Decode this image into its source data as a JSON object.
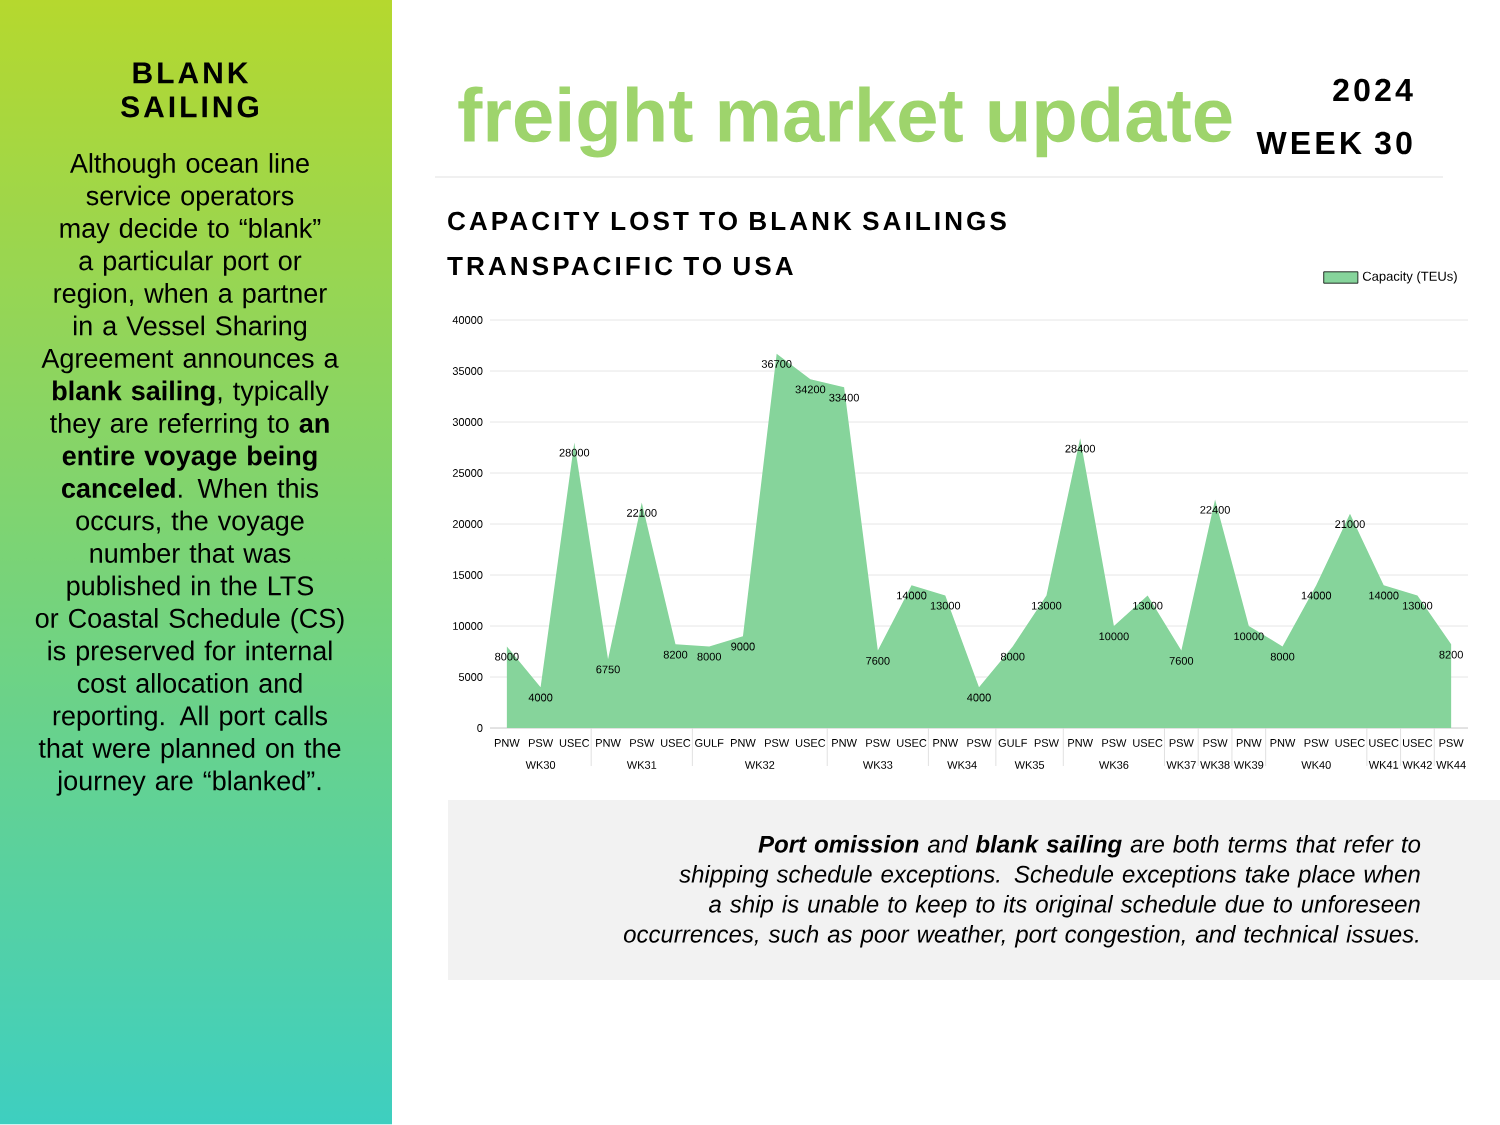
{
  "chart_data": {
    "type": "area",
    "title": "CAPACITY LOST TO BLANK SAILINGS",
    "subtitle": "TRANSPACIFIC TO USA",
    "categories": [
      "PNW",
      "PSW",
      "USEC",
      "PNW",
      "PSW",
      "USEC",
      "GULF",
      "PNW",
      "PSW",
      "USEC",
      "PNW",
      "PSW",
      "USEC",
      "PNW",
      "PSW",
      "GULF",
      "PSW",
      "PNW",
      "PSW",
      "USEC",
      "PSW",
      "PSW",
      "PNW",
      "PNW",
      "PSW",
      "USEC",
      "USEC",
      "USEC",
      "PSW"
    ],
    "series": [
      {
        "name": "Capacity (TEUs)",
        "color": "#86d49b",
        "values": [
          8000,
          4000,
          28000,
          6750,
          22100,
          8200,
          8000,
          9000,
          36700,
          34200,
          33400,
          7600,
          14000,
          13000,
          4000,
          8000,
          13000,
          28400,
          10000,
          13000,
          7600,
          22400,
          10000,
          8000,
          14000,
          21000,
          14000,
          13000,
          8200
        ]
      }
    ],
    "ylim": [
      0,
      40000
    ],
    "yticks": [
      0,
      5000,
      10000,
      15000,
      20000,
      25000,
      30000,
      35000,
      40000
    ],
    "grid": "y",
    "legend": "top right",
    "data_labels": true,
    "annotations": [
      "freight market update",
      "2024",
      "WEEK 30",
      "BLANK SAILING",
      "Although ocean line service operators may decide to “blank” a particular port or region, when a partner in a Vessel Sharing Agreement announces a **blank sailing**, typically they are referring to **an entire voyage being canceled**. When this occurs, the voyage number that was published in the LTS or Coastal Schedule (CS) is preserved for internal cost allocation and reporting. All port calls that were planned on the journey are “blanked”.",
      "**Port omission** and **blank sailing** are both terms that refer to shipping schedule exceptions. Schedule exceptions take place when a ship is unable to keep to its original schedule due to unforeseen occurrences, such as poor weather, port congestion, and technical issues.",
      "WK30",
      "WK31",
      "WK32",
      "WK33",
      "WK34",
      "WK35",
      "WK36",
      "WK37",
      "WK38",
      "WK39",
      "WK40",
      "WK41",
      "WK42",
      "WK44"
    ]
  }
}
